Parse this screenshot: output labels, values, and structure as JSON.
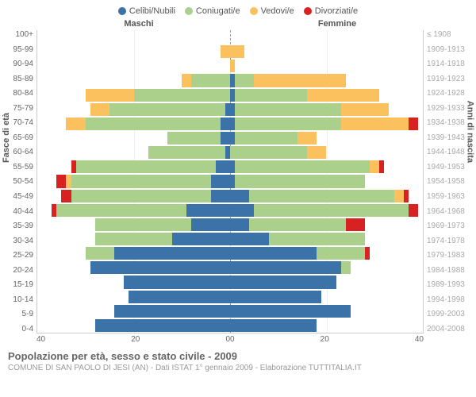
{
  "chart": {
    "type": "population-pyramid",
    "legend": [
      {
        "label": "Celibi/Nubili",
        "color": "#3b72a7"
      },
      {
        "label": "Coniugati/e",
        "color": "#abd08c"
      },
      {
        "label": "Vedovi/e",
        "color": "#fbc15e"
      },
      {
        "label": "Divorziati/e",
        "color": "#d82221"
      }
    ],
    "male_label": "Maschi",
    "female_label": "Femmine",
    "y_left_label": "Fasce di età",
    "y_right_label": "Anni di nascita",
    "age_groups": [
      "100+",
      "95-99",
      "90-94",
      "85-89",
      "80-84",
      "75-79",
      "70-74",
      "65-69",
      "60-64",
      "55-59",
      "50-54",
      "45-49",
      "40-44",
      "35-39",
      "30-34",
      "25-29",
      "20-24",
      "15-19",
      "10-14",
      "5-9",
      "0-4"
    ],
    "birth_years": [
      "≤ 1908",
      "1909-1913",
      "1914-1918",
      "1919-1923",
      "1924-1928",
      "1929-1933",
      "1934-1938",
      "1939-1943",
      "1944-1948",
      "1949-1953",
      "1954-1958",
      "1959-1963",
      "1964-1968",
      "1969-1973",
      "1974-1978",
      "1979-1983",
      "1984-1988",
      "1989-1993",
      "1994-1998",
      "1999-2003",
      "2004-2008"
    ],
    "x_ticks_left": [
      "40",
      "20",
      "0"
    ],
    "x_ticks_right": [
      "0",
      "20",
      "40"
    ],
    "x_max": 40,
    "male": [
      {
        "cel": 0,
        "con": 0,
        "ved": 0,
        "div": 0
      },
      {
        "cel": 0,
        "con": 0,
        "ved": 2,
        "div": 0
      },
      {
        "cel": 0,
        "con": 0,
        "ved": 0,
        "div": 0
      },
      {
        "cel": 0,
        "con": 8,
        "ved": 2,
        "div": 0
      },
      {
        "cel": 0,
        "con": 20,
        "ved": 10,
        "div": 0
      },
      {
        "cel": 1,
        "con": 24,
        "ved": 4,
        "div": 0
      },
      {
        "cel": 2,
        "con": 28,
        "ved": 4,
        "div": 0
      },
      {
        "cel": 2,
        "con": 11,
        "ved": 0,
        "div": 0
      },
      {
        "cel": 1,
        "con": 16,
        "ved": 0,
        "div": 0
      },
      {
        "cel": 3,
        "con": 29,
        "ved": 0,
        "div": 1
      },
      {
        "cel": 4,
        "con": 29,
        "ved": 1,
        "div": 2
      },
      {
        "cel": 4,
        "con": 29,
        "ved": 0,
        "div": 2
      },
      {
        "cel": 9,
        "con": 27,
        "ved": 0,
        "div": 1
      },
      {
        "cel": 8,
        "con": 20,
        "ved": 0,
        "div": 0
      },
      {
        "cel": 12,
        "con": 16,
        "ved": 0,
        "div": 0
      },
      {
        "cel": 24,
        "con": 6,
        "ved": 0,
        "div": 0
      },
      {
        "cel": 29,
        "con": 0,
        "ved": 0,
        "div": 0
      },
      {
        "cel": 22,
        "con": 0,
        "ved": 0,
        "div": 0
      },
      {
        "cel": 21,
        "con": 0,
        "ved": 0,
        "div": 0
      },
      {
        "cel": 24,
        "con": 0,
        "ved": 0,
        "div": 0
      },
      {
        "cel": 28,
        "con": 0,
        "ved": 0,
        "div": 0
      }
    ],
    "female": [
      {
        "cel": 0,
        "con": 0,
        "ved": 0,
        "div": 0
      },
      {
        "cel": 0,
        "con": 0,
        "ved": 3,
        "div": 0
      },
      {
        "cel": 0,
        "con": 0,
        "ved": 1,
        "div": 0
      },
      {
        "cel": 1,
        "con": 4,
        "ved": 19,
        "div": 0
      },
      {
        "cel": 1,
        "con": 15,
        "ved": 15,
        "div": 0
      },
      {
        "cel": 1,
        "con": 22,
        "ved": 10,
        "div": 0
      },
      {
        "cel": 1,
        "con": 22,
        "ved": 14,
        "div": 2
      },
      {
        "cel": 1,
        "con": 13,
        "ved": 4,
        "div": 0
      },
      {
        "cel": 0,
        "con": 16,
        "ved": 4,
        "div": 0
      },
      {
        "cel": 1,
        "con": 28,
        "ved": 2,
        "div": 1
      },
      {
        "cel": 1,
        "con": 27,
        "ved": 0,
        "div": 0
      },
      {
        "cel": 4,
        "con": 30,
        "ved": 2,
        "div": 1
      },
      {
        "cel": 5,
        "con": 32,
        "ved": 0,
        "div": 2
      },
      {
        "cel": 4,
        "con": 20,
        "ved": 0,
        "div": 4
      },
      {
        "cel": 8,
        "con": 20,
        "ved": 0,
        "div": 0
      },
      {
        "cel": 18,
        "con": 10,
        "ved": 0,
        "div": 1
      },
      {
        "cel": 23,
        "con": 2,
        "ved": 0,
        "div": 0
      },
      {
        "cel": 22,
        "con": 0,
        "ved": 0,
        "div": 0
      },
      {
        "cel": 19,
        "con": 0,
        "ved": 0,
        "div": 0
      },
      {
        "cel": 25,
        "con": 0,
        "ved": 0,
        "div": 0
      },
      {
        "cel": 18,
        "con": 0,
        "ved": 0,
        "div": 0
      }
    ],
    "colors": {
      "celibi": "#3b72a7",
      "coniugati": "#abd08c",
      "vedovi": "#fbc15e",
      "divorziati": "#d82221",
      "background": "#ffffff",
      "grid": "#eeeeee",
      "axis": "#cccccc",
      "text": "#666666"
    },
    "title": "Popolazione per età, sesso e stato civile - 2009",
    "subtitle": "COMUNE DI SAN PAOLO DI JESI (AN) - Dati ISTAT 1° gennaio 2009 - Elaborazione TUTTITALIA.IT"
  }
}
